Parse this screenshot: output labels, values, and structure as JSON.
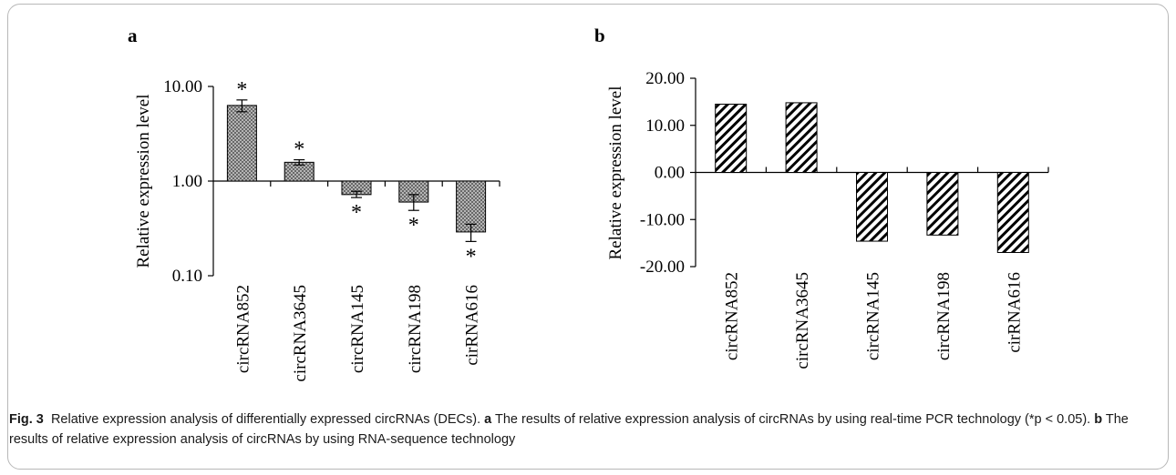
{
  "chart_data": [
    {
      "panel_label": "a",
      "type": "bar",
      "yscale": "log",
      "categories": [
        "circRNA852",
        "circRNA3645",
        "circRNA145",
        "circRNA198",
        "cirRNA616"
      ],
      "values": [
        6.3,
        1.58,
        0.72,
        0.6,
        0.29
      ],
      "error_low": [
        5.4,
        1.48,
        0.67,
        0.49,
        0.23
      ],
      "error_high": [
        7.2,
        1.68,
        0.78,
        0.72,
        0.35
      ],
      "significance": [
        "*",
        "*",
        "*",
        "*",
        "*"
      ],
      "ylabel": "Relative expression level",
      "ylim": [
        0.1,
        10
      ],
      "yticks": [
        "0.10",
        "1.00",
        "10.00"
      ],
      "baseline": 1,
      "fill": "crosshatch"
    },
    {
      "panel_label": "b",
      "type": "bar",
      "categories": [
        "circRNA852",
        "circRNA3645",
        "circRNA145",
        "circRNA198",
        "cirRNA616"
      ],
      "values": [
        14.5,
        14.8,
        -14.6,
        -13.3,
        -17.0
      ],
      "ylabel": "Relative expression level",
      "ylim": [
        -20,
        20
      ],
      "yticks": [
        "-20.00",
        "-10.00",
        "0.00",
        "10.00",
        "20.00"
      ],
      "fill": "diagonal-stripes"
    }
  ],
  "caption": {
    "fig_label": "Fig. 3",
    "fig_text": "Relative expression analysis of differentially expressed circRNAs (DECs).",
    "part_a_label": "a",
    "part_a_text": "The results of relative expression analysis of circRNAs by using real-time PCR technology (*p < 0.05).",
    "part_b_label": "b",
    "part_b_text": "The results of relative expression analysis of circRNAs by using RNA-sequence technology"
  }
}
